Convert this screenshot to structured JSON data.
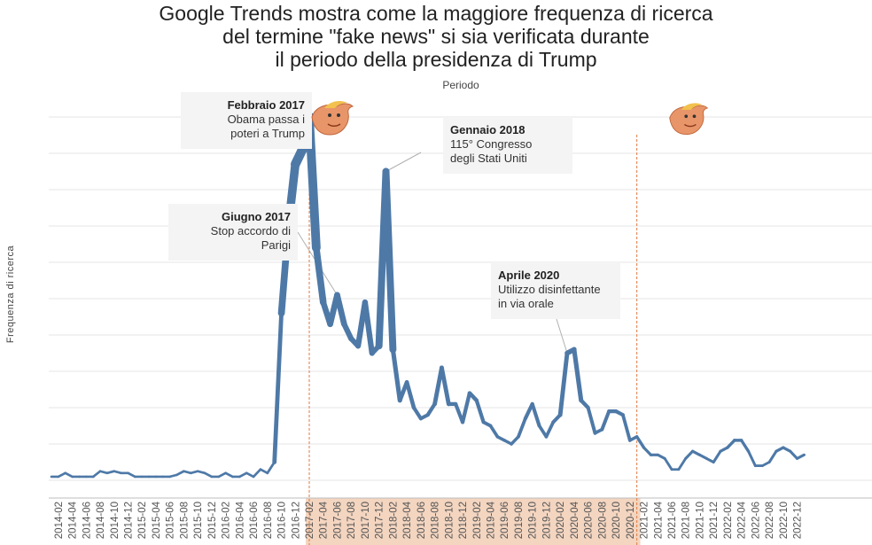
{
  "title_lines": [
    "Google Trends mostra come la maggiore frequenza di ricerca",
    "del termine \"fake news\" si sia verificata durante",
    "il periodo della presidenza di Trump"
  ],
  "colors": {
    "line": "#4e79a7",
    "presidency_band": "#f3d5c0",
    "marker_line": "#e07a3f",
    "annotation_bg": "#f4f4f4",
    "grid": "#e6e6e6"
  },
  "icons": [
    "trump-bird-icon",
    "trump-bird-icon"
  ],
  "annotations": [
    {
      "id": "feb2017",
      "title": "Febbraio 2017",
      "lines": [
        "Obama passa i",
        "poteri a Trump"
      ]
    },
    {
      "id": "gen2018",
      "title": "Gennaio 2018",
      "lines": [
        "115° Congresso",
        "degli Stati Uniti"
      ]
    },
    {
      "id": "giu2017",
      "title": "Giugno 2017",
      "lines": [
        "Stop accordo di",
        "Parigi"
      ]
    },
    {
      "id": "apr2020",
      "title": "Aprile 2020",
      "lines": [
        "Utilizzo disinfettante",
        "in via orale"
      ]
    }
  ],
  "chart_data": {
    "type": "line",
    "title": "Google Trends mostra come la maggiore frequenza di ricerca del termine \"fake news\" si sia verificata durante il periodo della presidenza di Trump",
    "xlabel": "Periodo",
    "ylabel": "Frequenza di ricerca",
    "x_tick_labels": [
      "2014-02",
      "2014-04",
      "2014-06",
      "2014-08",
      "2014-10",
      "2014-12",
      "2015-02",
      "2015-04",
      "2015-06",
      "2015-08",
      "2015-10",
      "2015-12",
      "2016-02",
      "2016-04",
      "2016-06",
      "2016-08",
      "2016-10",
      "2016-12",
      "2017-02",
      "2017-04",
      "2017-06",
      "2017-08",
      "2017-10",
      "2017-12",
      "2018-02",
      "2018-04",
      "2018-06",
      "2018-08",
      "2018-10",
      "2018-12",
      "2019-02",
      "2019-04",
      "2019-06",
      "2019-08",
      "2019-10",
      "2019-12",
      "2020-02",
      "2020-04",
      "2020-06",
      "2020-08",
      "2020-10",
      "2020-12",
      "2021-02",
      "2021-04",
      "2021-06",
      "2021-08",
      "2021-10",
      "2021-12",
      "2022-02",
      "2022-04",
      "2022-06",
      "2022-08",
      "2022-10",
      "2022-12"
    ],
    "y_axis_labels_shown": false,
    "grid": true,
    "highlight_period": {
      "start": "2017-02",
      "end": "2021-01"
    },
    "series": [
      {
        "values": [
          {
            "x": "2014-01",
            "y": 1
          },
          {
            "x": "2014-02",
            "y": 1
          },
          {
            "x": "2014-03",
            "y": 2
          },
          {
            "x": "2014-04",
            "y": 1
          },
          {
            "x": "2014-05",
            "y": 1
          },
          {
            "x": "2014-06",
            "y": 1
          },
          {
            "x": "2014-07",
            "y": 1
          },
          {
            "x": "2014-08",
            "y": 2.5
          },
          {
            "x": "2014-09",
            "y": 2
          },
          {
            "x": "2014-10",
            "y": 2.5
          },
          {
            "x": "2014-11",
            "y": 2
          },
          {
            "x": "2014-12",
            "y": 2
          },
          {
            "x": "2015-01",
            "y": 1
          },
          {
            "x": "2015-02",
            "y": 1
          },
          {
            "x": "2015-03",
            "y": 1
          },
          {
            "x": "2015-04",
            "y": 1
          },
          {
            "x": "2015-05",
            "y": 1
          },
          {
            "x": "2015-06",
            "y": 1
          },
          {
            "x": "2015-07",
            "y": 1.5
          },
          {
            "x": "2015-08",
            "y": 2.5
          },
          {
            "x": "2015-09",
            "y": 2
          },
          {
            "x": "2015-10",
            "y": 2.5
          },
          {
            "x": "2015-11",
            "y": 2
          },
          {
            "x": "2015-12",
            "y": 1
          },
          {
            "x": "2016-01",
            "y": 1
          },
          {
            "x": "2016-02",
            "y": 2
          },
          {
            "x": "2016-03",
            "y": 1
          },
          {
            "x": "2016-04",
            "y": 1
          },
          {
            "x": "2016-05",
            "y": 2
          },
          {
            "x": "2016-06",
            "y": 1
          },
          {
            "x": "2016-07",
            "y": 3
          },
          {
            "x": "2016-08",
            "y": 2
          },
          {
            "x": "2016-09",
            "y": 5
          },
          {
            "x": "2016-10",
            "y": 46
          },
          {
            "x": "2016-11",
            "y": 70
          },
          {
            "x": "2016-12",
            "y": 87
          },
          {
            "x": "2017-01",
            "y": 91
          },
          {
            "x": "2017-02",
            "y": 100
          },
          {
            "x": "2017-03",
            "y": 64
          },
          {
            "x": "2017-04",
            "y": 49
          },
          {
            "x": "2017-05",
            "y": 43
          },
          {
            "x": "2017-06",
            "y": 51
          },
          {
            "x": "2017-07",
            "y": 43
          },
          {
            "x": "2017-08",
            "y": 39
          },
          {
            "x": "2017-09",
            "y": 37
          },
          {
            "x": "2017-10",
            "y": 49
          },
          {
            "x": "2017-11",
            "y": 35
          },
          {
            "x": "2017-12",
            "y": 37
          },
          {
            "x": "2018-01",
            "y": 85
          },
          {
            "x": "2018-02",
            "y": 36
          },
          {
            "x": "2018-03",
            "y": 22
          },
          {
            "x": "2018-04",
            "y": 27
          },
          {
            "x": "2018-05",
            "y": 20
          },
          {
            "x": "2018-06",
            "y": 17
          },
          {
            "x": "2018-07",
            "y": 18
          },
          {
            "x": "2018-08",
            "y": 21
          },
          {
            "x": "2018-09",
            "y": 31
          },
          {
            "x": "2018-10",
            "y": 21
          },
          {
            "x": "2018-11",
            "y": 21
          },
          {
            "x": "2018-12",
            "y": 16
          },
          {
            "x": "2019-01",
            "y": 24
          },
          {
            "x": "2019-02",
            "y": 22
          },
          {
            "x": "2019-03",
            "y": 16
          },
          {
            "x": "2019-04",
            "y": 15
          },
          {
            "x": "2019-05",
            "y": 12
          },
          {
            "x": "2019-06",
            "y": 11
          },
          {
            "x": "2019-07",
            "y": 10
          },
          {
            "x": "2019-08",
            "y": 12
          },
          {
            "x": "2019-09",
            "y": 17
          },
          {
            "x": "2019-10",
            "y": 21
          },
          {
            "x": "2019-11",
            "y": 15
          },
          {
            "x": "2019-12",
            "y": 12
          },
          {
            "x": "2020-01",
            "y": 16
          },
          {
            "x": "2020-02",
            "y": 18
          },
          {
            "x": "2020-03",
            "y": 35
          },
          {
            "x": "2020-04",
            "y": 36
          },
          {
            "x": "2020-05",
            "y": 22
          },
          {
            "x": "2020-06",
            "y": 20
          },
          {
            "x": "2020-07",
            "y": 13
          },
          {
            "x": "2020-08",
            "y": 14
          },
          {
            "x": "2020-09",
            "y": 19
          },
          {
            "x": "2020-10",
            "y": 19
          },
          {
            "x": "2020-11",
            "y": 18
          },
          {
            "x": "2020-12",
            "y": 11
          },
          {
            "x": "2021-01",
            "y": 12
          },
          {
            "x": "2021-02",
            "y": 9
          },
          {
            "x": "2021-03",
            "y": 7
          },
          {
            "x": "2021-04",
            "y": 7
          },
          {
            "x": "2021-05",
            "y": 6
          },
          {
            "x": "2021-06",
            "y": 3
          },
          {
            "x": "2021-07",
            "y": 3
          },
          {
            "x": "2021-08",
            "y": 6
          },
          {
            "x": "2021-09",
            "y": 8
          },
          {
            "x": "2021-10",
            "y": 7
          },
          {
            "x": "2021-11",
            "y": 6
          },
          {
            "x": "2021-12",
            "y": 5
          },
          {
            "x": "2022-01",
            "y": 8
          },
          {
            "x": "2022-02",
            "y": 9
          },
          {
            "x": "2022-03",
            "y": 11
          },
          {
            "x": "2022-04",
            "y": 11
          },
          {
            "x": "2022-05",
            "y": 8
          },
          {
            "x": "2022-06",
            "y": 4
          },
          {
            "x": "2022-07",
            "y": 4
          },
          {
            "x": "2022-08",
            "y": 5
          },
          {
            "x": "2022-09",
            "y": 8
          },
          {
            "x": "2022-10",
            "y": 9
          },
          {
            "x": "2022-11",
            "y": 8
          },
          {
            "x": "2022-12",
            "y": 6
          },
          {
            "x": "2023-01",
            "y": 7
          }
        ]
      }
    ]
  }
}
